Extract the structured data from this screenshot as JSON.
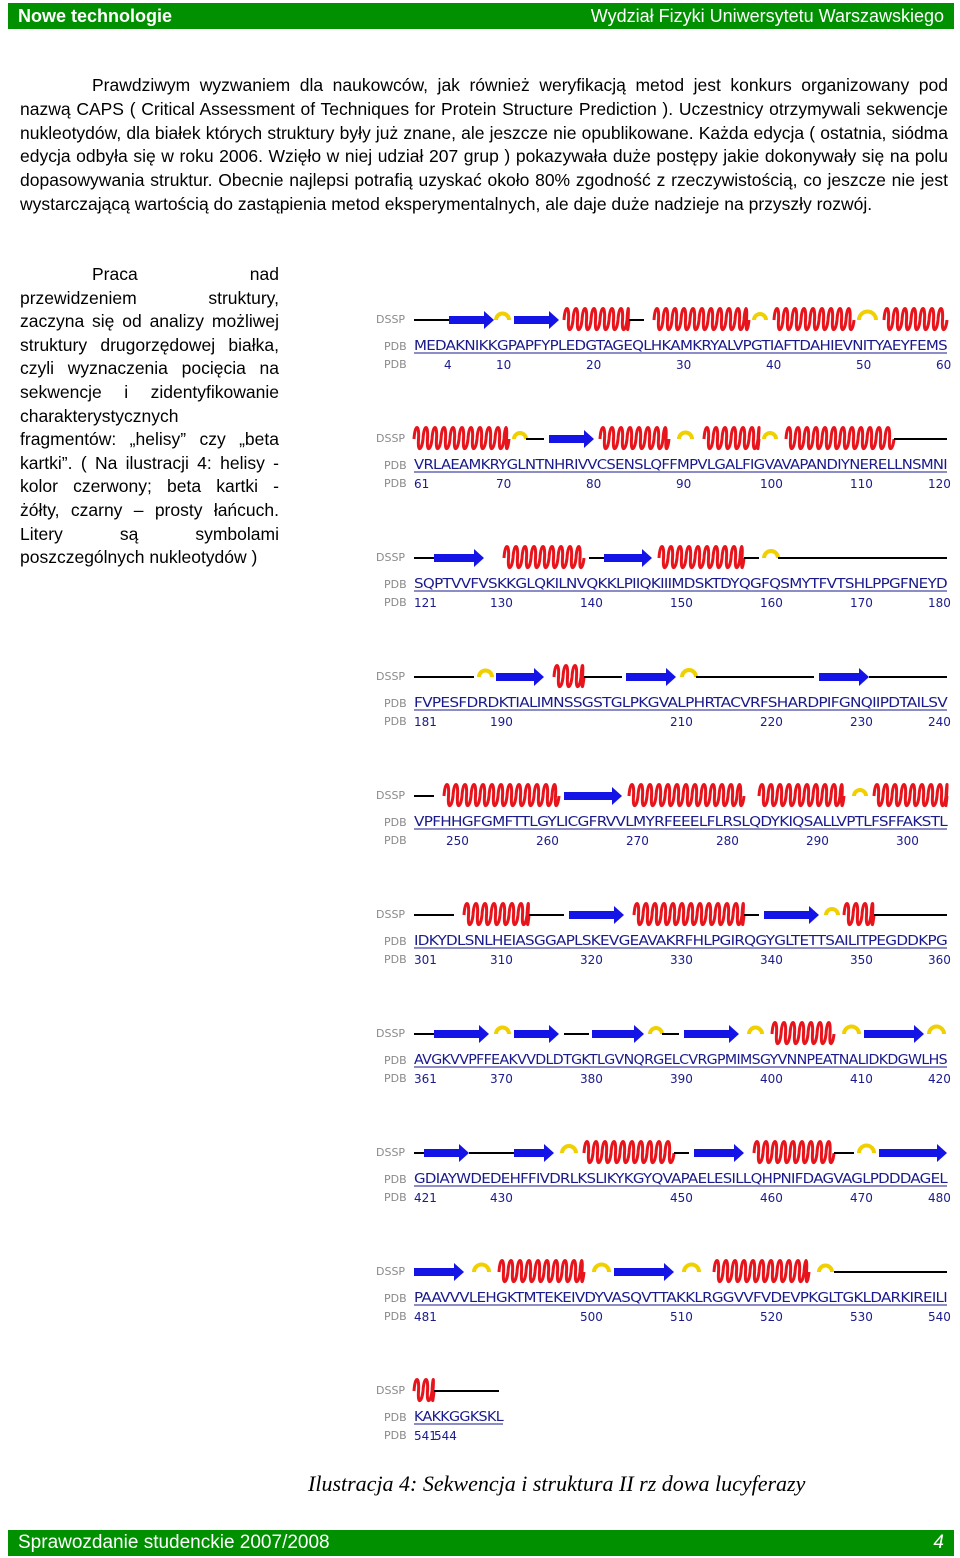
{
  "header": {
    "title": "Nowe technologie",
    "faculty": "Wydział Fizyki Uniwersytetu Warszawskiego"
  },
  "intro_paragraph": "Prawdziwym wyzwaniem dla naukowców, jak również weryfikacją metod jest konkurs organizowany pod nazwą CAPS ( Critical Assessment of Techniques for Protein Structure Prediction ). Uczestnicy otrzymywali sekwencje nukleotydów, dla białek których struktury były już znane, ale jeszcze nie opublikowane. Każda edycja ( ostatnia, siódma edycja odbyła się w roku 2006. Wzięło w niej udział 207 grup ) pokazywała duże postępy jakie dokonywały się na polu dopasowywania struktur. Obecnie najlepsi potrafią uzyskać około 80% zgodność z rzeczywistością, co jeszcze nie jest wystarczającą wartością do zastąpienia metod eksperymentalnych, ale daje duże nadzieje na przyszły rozwój.",
  "side_paragraph": "Praca nad przewidzeniem struktury, zaczyna się od analizy możliwej struktury drugorzędowej białka, czyli wyznaczenia pocięcia na sekwencje i zidentyfikowanie charakterystycznych fragmentów: „helisy” czy „beta kartki”. ( Na ilustracji 4: helisy - kolor czerwony; beta kartki - żółty, czarny – prosty łańcuch. Litery są symbolami poszczególnych nukleotydów )",
  "figure": {
    "labels": {
      "dssp": "DSSP",
      "pdb": "PDB"
    },
    "colors": {
      "helix": "#e8141c",
      "strand": "#1414e6",
      "turn": "#f0d000",
      "coil": "#000000",
      "sequence": "#1a1a8c",
      "label": "#8a8a8a"
    },
    "rows": [
      {
        "sequence": "MEDAKNIKKGPAPFYPLEDGTAGEQLHKAMKRYALVPGTIAFTDAHIEVNITYAEYFEMS",
        "numbers": [
          "4",
          "10",
          "20",
          "30",
          "40",
          "50",
          "60"
        ]
      },
      {
        "sequence": "VRLAEAMKRYGLNTNHRIVVCSENSLQFFMPVLGALFIGVAVAPANDIYNERELLNSMNI",
        "numbers": [
          "61",
          "70",
          "80",
          "90",
          "100",
          "110",
          "120"
        ]
      },
      {
        "sequence": "SQPTVVFVSKKGLQKILNVQKKLPIIQKIIIMDSKTDYQGFQSMYTFVTSHLPPGFNEYD",
        "numbers": [
          "121",
          "130",
          "140",
          "150",
          "160",
          "170",
          "180"
        ]
      },
      {
        "sequence": "FVPESFDRDKTIALIMNSSGSTGLPKGVALPHRTACVRFSHARDPIFGNQIIPDTAILSV",
        "numbers": [
          "181",
          "190",
          "210",
          "220",
          "230",
          "240"
        ]
      },
      {
        "sequence": "VPFHHGFGMFTTLGYLICGFRVVLMYRFEEELFLRSLQDYKIQSALLVPTLFSFFAKSTL",
        "numbers": [
          "250",
          "260",
          "270",
          "280",
          "290",
          "300"
        ]
      },
      {
        "sequence": "IDKYDLSNLHEIASGGAPLSKEVGEAVAKRFHLPGIRQGYGLTETTSAILITPEGDDKPG",
        "numbers": [
          "301",
          "310",
          "320",
          "330",
          "340",
          "350",
          "360"
        ]
      },
      {
        "sequence": "AVGKVVPFFEAKVVDLDTGKTLGVNQRGELCVRGPMIMSGYVNNPEATNALIDKDGWLHS",
        "numbers": [
          "361",
          "370",
          "380",
          "390",
          "400",
          "410",
          "420"
        ]
      },
      {
        "sequence": "GDIAYWDEDEHFFIVDRLKSLIKYKGYQVAPAELESILLQHPNIFDAGVAGLPDDDAGEL",
        "numbers": [
          "421",
          "430",
          "450",
          "460",
          "470",
          "480"
        ]
      },
      {
        "sequence": "PAAVVVLEHGKTMTEKEIVDYVASQVTTAKKLRGGVVFVDEVPKGLTGKLDARKIREILI",
        "numbers": [
          "481",
          "500",
          "510",
          "520",
          "530",
          "540"
        ]
      },
      {
        "sequence": "KAKKGGKSKL",
        "numbers": [
          "541",
          "544"
        ]
      }
    ]
  },
  "caption": "Ilustracja 4: Sekwencja i struktura II rz dowa lucyferazy",
  "footer": {
    "left": "Sprawozdanie studenckie 2007/2008",
    "page": "4"
  }
}
